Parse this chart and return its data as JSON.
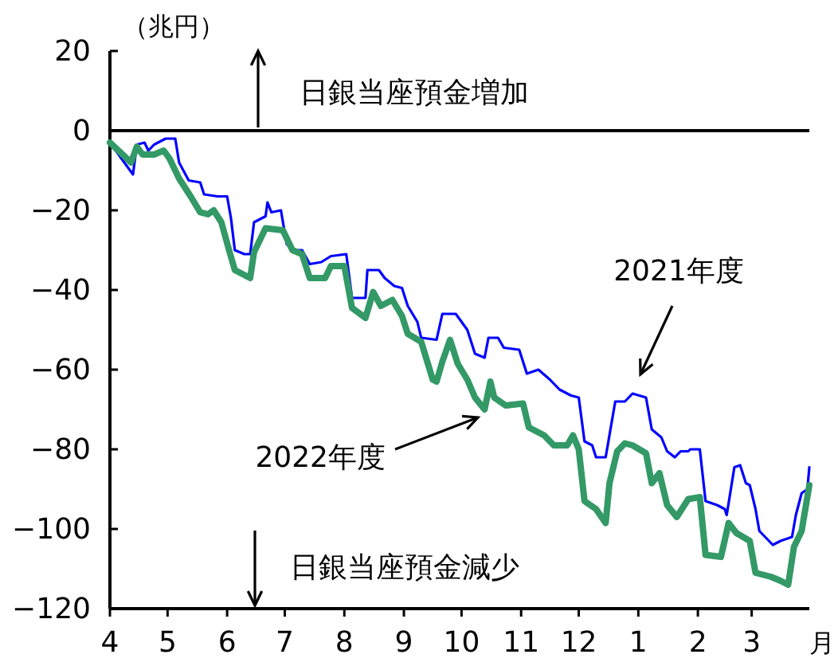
{
  "chart_data": {
    "type": "line",
    "ylabel": "（兆円）",
    "xlabel": "月",
    "xlim": [
      "2022-04-01",
      "2023-03-31"
    ],
    "ylim": [
      -120,
      20
    ],
    "xticks": [
      {
        "value": "2022-04-01",
        "label": "4"
      },
      {
        "value": "2022-05-01",
        "label": "5"
      },
      {
        "value": "2022-06-01",
        "label": "6"
      },
      {
        "value": "2022-07-01",
        "label": "7"
      },
      {
        "value": "2022-08-01",
        "label": "8"
      },
      {
        "value": "2022-09-01",
        "label": "9"
      },
      {
        "value": "2022-10-01",
        "label": "10"
      },
      {
        "value": "2022-11-01",
        "label": "11"
      },
      {
        "value": "2022-12-01",
        "label": "12"
      },
      {
        "value": "2023-01-01",
        "label": "1"
      },
      {
        "value": "2023-02-01",
        "label": "2"
      },
      {
        "value": "2023-03-01",
        "label": "3"
      }
    ],
    "yticks": [
      -120,
      -100,
      -80,
      -60,
      -40,
      -20,
      0,
      20
    ],
    "grid": false,
    "marker": "none",
    "line_style": "solid",
    "ref_lines": [
      {
        "axis": "y",
        "value": 0,
        "color": "#000000"
      }
    ],
    "annotations": [
      "日銀当座預金増加",
      "日銀当座預金減少",
      "2021年度",
      "2022年度"
    ],
    "series": [
      {
        "color": "#0000ff",
        "x": [
          "2022-04-01",
          "2022-04-13",
          "2022-04-15",
          "2022-04-19",
          "2022-04-21",
          "2022-04-24",
          "2022-04-30",
          "2022-05-05",
          "2022-05-07",
          "2022-05-12",
          "2022-05-18",
          "2022-05-20",
          "2022-05-27",
          "2022-06-01",
          "2022-06-03",
          "2022-06-05",
          "2022-06-10",
          "2022-06-13",
          "2022-06-15",
          "2022-06-21",
          "2022-06-22",
          "2022-06-24",
          "2022-06-29",
          "2022-07-02",
          "2022-07-06",
          "2022-07-10",
          "2022-07-14",
          "2022-07-20",
          "2022-07-25",
          "2022-08-02",
          "2022-08-05",
          "2022-08-12",
          "2022-08-13",
          "2022-08-19",
          "2022-08-22",
          "2022-08-27",
          "2022-08-31",
          "2022-09-03",
          "2022-09-08",
          "2022-09-10",
          "2022-09-18",
          "2022-09-21",
          "2022-09-28",
          "2022-10-04",
          "2022-10-08",
          "2022-10-13",
          "2022-10-15",
          "2022-10-20",
          "2022-10-23",
          "2022-10-31",
          "2022-11-04",
          "2022-11-10",
          "2022-11-16",
          "2022-11-21",
          "2022-11-27",
          "2022-12-01",
          "2022-12-04",
          "2022-12-08",
          "2022-12-10",
          "2022-12-15",
          "2022-12-20",
          "2022-12-25",
          "2022-12-29",
          "2023-01-05",
          "2023-01-08",
          "2023-01-13",
          "2023-01-16",
          "2023-01-20",
          "2023-01-23",
          "2023-01-27",
          "2023-01-28",
          "2023-02-02",
          "2023-02-05",
          "2023-02-11",
          "2023-02-15",
          "2023-02-16",
          "2023-02-20",
          "2023-02-23",
          "2023-02-26",
          "2023-02-28",
          "2023-03-03",
          "2023-03-05",
          "2023-03-12",
          "2023-03-16",
          "2023-03-22",
          "2023-03-24",
          "2023-03-27",
          "2023-03-30",
          "2023-03-31"
        ],
        "values": [
          -3,
          -11,
          -3.5,
          -3,
          -5,
          -3.5,
          -2,
          -2,
          -8,
          -12.5,
          -13,
          -16,
          -16.5,
          -16.5,
          -22,
          -30,
          -31,
          -31,
          -23,
          -21.5,
          -18,
          -20.5,
          -20,
          -28.5,
          -30,
          -30,
          -33.5,
          -33,
          -31.5,
          -31,
          -42,
          -42,
          -35,
          -35,
          -37,
          -39,
          -39.5,
          -44,
          -48,
          -52,
          -52.5,
          -46,
          -46,
          -50,
          -56,
          -57,
          -52,
          -52,
          -54.5,
          -55,
          -61,
          -60,
          -62.5,
          -65,
          -66.5,
          -67,
          -78,
          -79,
          -82,
          -82,
          -68,
          -68,
          -66,
          -67,
          -75,
          -77,
          -80.5,
          -82,
          -80.5,
          -80.5,
          -80,
          -80,
          -93,
          -94,
          -95,
          -96.5,
          -84.5,
          -84,
          -88.5,
          -89,
          -95,
          -100.5,
          -104,
          -103,
          -102,
          -96.5,
          -91,
          -90,
          -84.5
        ]
      },
      {
        "color": "#339966",
        "x": [
          "2022-04-01",
          "2022-04-12",
          "2022-04-15",
          "2022-04-18",
          "2022-04-24",
          "2022-04-29",
          "2022-05-02",
          "2022-05-07",
          "2022-05-13",
          "2022-05-18",
          "2022-05-22",
          "2022-05-25",
          "2022-05-29",
          "2022-06-02",
          "2022-06-05",
          "2022-06-13",
          "2022-06-15",
          "2022-06-21",
          "2022-06-30",
          "2022-07-05",
          "2022-07-10",
          "2022-07-14",
          "2022-07-22",
          "2022-07-25",
          "2022-08-01",
          "2022-08-05",
          "2022-08-12",
          "2022-08-16",
          "2022-08-20",
          "2022-08-26",
          "2022-08-31",
          "2022-09-03",
          "2022-09-10",
          "2022-09-16",
          "2022-09-18",
          "2022-09-21",
          "2022-09-25",
          "2022-09-29",
          "2022-10-04",
          "2022-10-08",
          "2022-10-13",
          "2022-10-16",
          "2022-10-18",
          "2022-10-24",
          "2022-11-02",
          "2022-11-05",
          "2022-11-13",
          "2022-11-18",
          "2022-11-25",
          "2022-11-28",
          "2022-12-01",
          "2022-12-04",
          "2022-12-10",
          "2022-12-15",
          "2022-12-17",
          "2022-12-21",
          "2022-12-25",
          "2022-12-29",
          "2023-01-05",
          "2023-01-08",
          "2023-01-12",
          "2023-01-16",
          "2023-01-21",
          "2023-01-27",
          "2023-02-02",
          "2023-02-05",
          "2023-02-13",
          "2023-02-17",
          "2023-02-21",
          "2023-02-28",
          "2023-03-03",
          "2023-03-11",
          "2023-03-16",
          "2023-03-20",
          "2023-03-23",
          "2023-03-27",
          "2023-03-31"
        ],
        "values": [
          -3,
          -8,
          -4,
          -6,
          -6,
          -5,
          -7,
          -12,
          -16.5,
          -20.5,
          -21,
          -20,
          -23,
          -30,
          -35,
          -37,
          -30.5,
          -24.5,
          -25,
          -30,
          -31,
          -37,
          -37,
          -34,
          -34,
          -44.5,
          -47,
          -40.5,
          -44,
          -42.5,
          -46.5,
          -51,
          -53,
          -62.5,
          -63,
          -58,
          -52.5,
          -58.5,
          -62.5,
          -67,
          -70,
          -63,
          -67,
          -69,
          -68.5,
          -74.5,
          -76.5,
          -79,
          -79,
          -76.5,
          -80,
          -93,
          -95,
          -98.5,
          -88.5,
          -80.5,
          -78.5,
          -79,
          -81,
          -88.5,
          -86,
          -94,
          -97,
          -92.5,
          -92,
          -106.5,
          -107,
          -98.5,
          -101,
          -103,
          -111,
          -112,
          -113,
          -114,
          -104.5,
          -100.5,
          -89
        ]
      }
    ]
  }
}
